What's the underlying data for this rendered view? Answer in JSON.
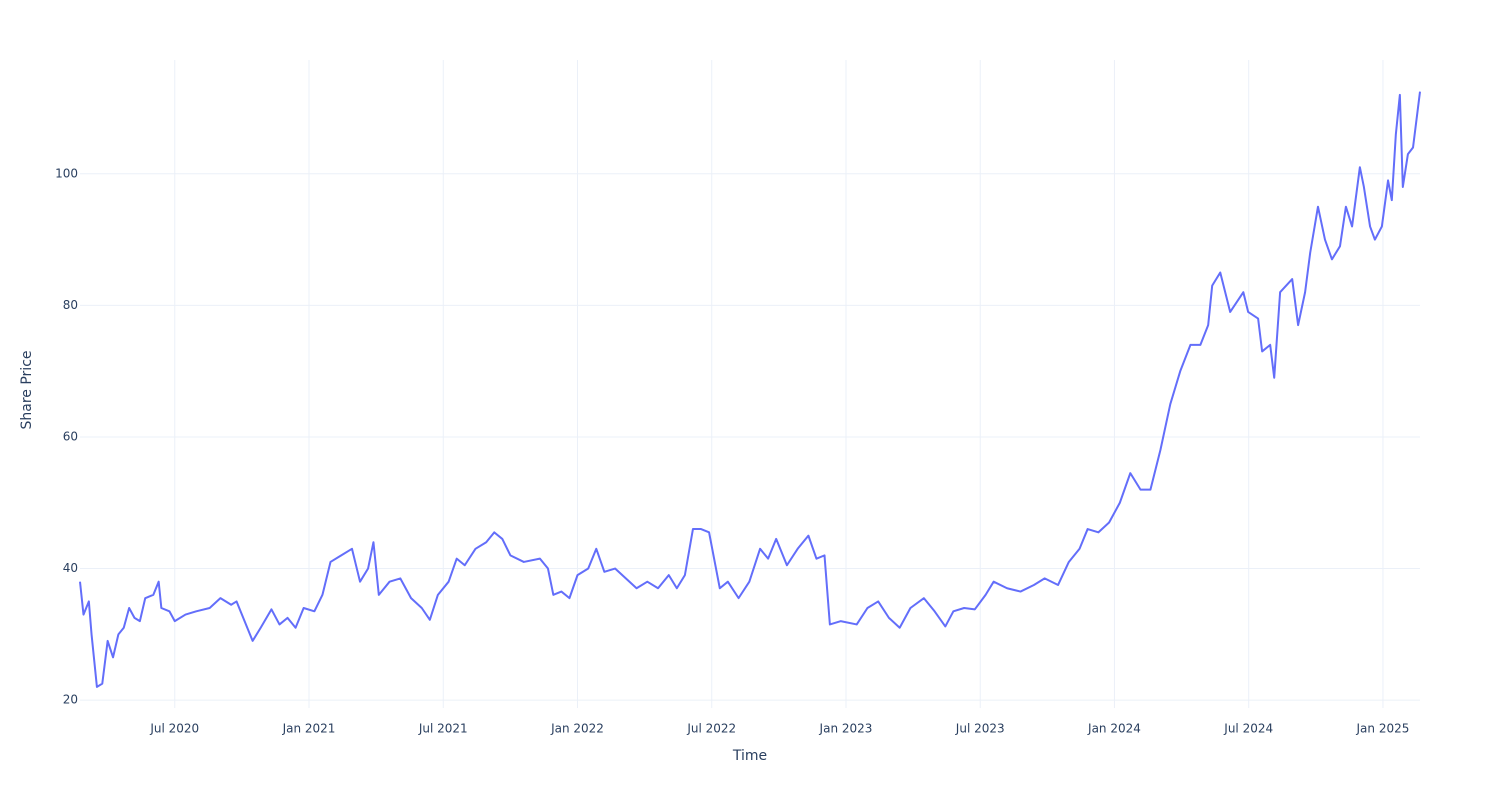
{
  "chart_data": {
    "type": "line",
    "x_label": "Time",
    "y_label": "Share Price",
    "x": [
      2020.147,
      2020.16,
      2020.18,
      2020.19,
      2020.2,
      2020.21,
      2020.23,
      2020.25,
      2020.27,
      2020.29,
      2020.31,
      2020.33,
      2020.35,
      2020.37,
      2020.39,
      2020.42,
      2020.44,
      2020.45,
      2020.48,
      2020.5,
      2020.54,
      2020.58,
      2020.63,
      2020.67,
      2020.71,
      2020.73,
      2020.76,
      2020.79,
      2020.82,
      2020.86,
      2020.89,
      2020.92,
      2020.95,
      2020.98,
      2021.02,
      2021.05,
      2021.08,
      2021.12,
      2021.16,
      2021.19,
      2021.22,
      2021.24,
      2021.26,
      2021.3,
      2021.34,
      2021.38,
      2021.42,
      2021.45,
      2021.48,
      2021.52,
      2021.55,
      2021.58,
      2021.62,
      2021.66,
      2021.69,
      2021.72,
      2021.75,
      2021.8,
      2021.86,
      2021.89,
      2021.91,
      2021.94,
      2021.97,
      2022.0,
      2022.04,
      2022.07,
      2022.1,
      2022.14,
      2022.18,
      2022.22,
      2022.26,
      2022.3,
      2022.34,
      2022.37,
      2022.4,
      2022.43,
      2022.46,
      2022.49,
      2022.53,
      2022.56,
      2022.6,
      2022.64,
      2022.68,
      2022.71,
      2022.74,
      2022.78,
      2022.82,
      2022.86,
      2022.89,
      2022.92,
      2022.94,
      2022.98,
      2023.04,
      2023.08,
      2023.12,
      2023.16,
      2023.2,
      2023.24,
      2023.29,
      2023.33,
      2023.37,
      2023.4,
      2023.44,
      2023.48,
      2023.52,
      2023.55,
      2023.6,
      2023.65,
      2023.7,
      2023.74,
      2023.79,
      2023.83,
      2023.87,
      2023.9,
      2023.94,
      2023.98,
      2024.02,
      2024.059,
      2024.097,
      2024.134,
      2024.171,
      2024.208,
      2024.245,
      2024.283,
      2024.32,
      2024.349,
      2024.364,
      2024.394,
      2024.431,
      2024.48,
      2024.498,
      2024.535,
      2024.55,
      2024.58,
      2024.595,
      2024.617,
      2024.662,
      2024.684,
      2024.71,
      2024.729,
      2024.758,
      2024.784,
      2024.81,
      2024.84,
      2024.862,
      2024.885,
      2024.914,
      2024.929,
      2024.952,
      2024.97,
      2024.996,
      2025.019,
      2025.033,
      2025.048,
      2025.063,
      2025.074,
      2025.093,
      2025.112,
      2025.138
    ],
    "series": [
      {
        "color": "#636efa",
        "values": [
          38,
          33,
          35,
          30,
          26,
          22,
          22.5,
          29,
          26.5,
          30,
          31,
          34,
          32.5,
          32,
          35.5,
          36,
          38,
          34,
          33.5,
          32,
          33,
          33.5,
          34,
          35.5,
          34.5,
          35,
          32,
          29,
          31,
          33.8,
          31.5,
          32.5,
          31,
          34,
          33.5,
          36,
          41,
          42,
          43,
          38,
          40,
          44,
          36,
          38,
          38.5,
          35.5,
          34,
          32.2,
          36,
          38,
          41.5,
          40.5,
          43,
          44,
          45.5,
          44.5,
          42,
          41,
          41.5,
          40,
          36,
          36.5,
          35.5,
          39,
          40,
          43,
          39.5,
          40,
          38.5,
          37,
          38,
          37,
          39,
          37,
          39,
          46,
          46,
          45.5,
          37,
          38,
          35.5,
          38,
          43,
          41.5,
          44.5,
          40.5,
          43,
          45,
          41.5,
          42,
          31.5,
          32,
          31.5,
          34,
          35,
          32.5,
          31,
          34,
          35.5,
          33.5,
          31.2,
          33.5,
          34,
          33.8,
          36,
          38,
          37,
          36.5,
          37.5,
          38.5,
          37.5,
          41,
          43,
          46,
          45.5,
          47,
          50,
          54.5,
          52,
          52,
          58,
          65,
          70,
          74,
          74,
          77,
          83,
          85,
          79,
          82,
          79,
          78,
          73,
          74,
          69,
          82,
          84,
          77,
          82,
          88,
          95,
          90,
          87,
          89,
          95,
          92,
          101,
          98,
          92,
          90,
          92,
          99,
          96,
          106,
          112,
          98,
          103,
          104,
          112.5
        ]
      }
    ],
    "xlim": [
      2020.147,
      2025.138
    ],
    "ylim": [
      18.8,
      117.3
    ],
    "xticks": [
      {
        "value": 2020.5,
        "label": "Jul 2020"
      },
      {
        "value": 2021,
        "label": "Jan 2021"
      },
      {
        "value": 2021.5,
        "label": "Jul 2021"
      },
      {
        "value": 2022,
        "label": "Jan 2022"
      },
      {
        "value": 2022.5,
        "label": "Jul 2022"
      },
      {
        "value": 2023,
        "label": "Jan 2023"
      },
      {
        "value": 2023.5,
        "label": "Jul 2023"
      },
      {
        "value": 2024,
        "label": "Jan 2024"
      },
      {
        "value": 2024.5,
        "label": "Jul 2024"
      },
      {
        "value": 2025,
        "label": "Jan 2025"
      }
    ],
    "yticks": [
      20,
      40,
      60,
      80,
      100
    ],
    "grid": true
  }
}
